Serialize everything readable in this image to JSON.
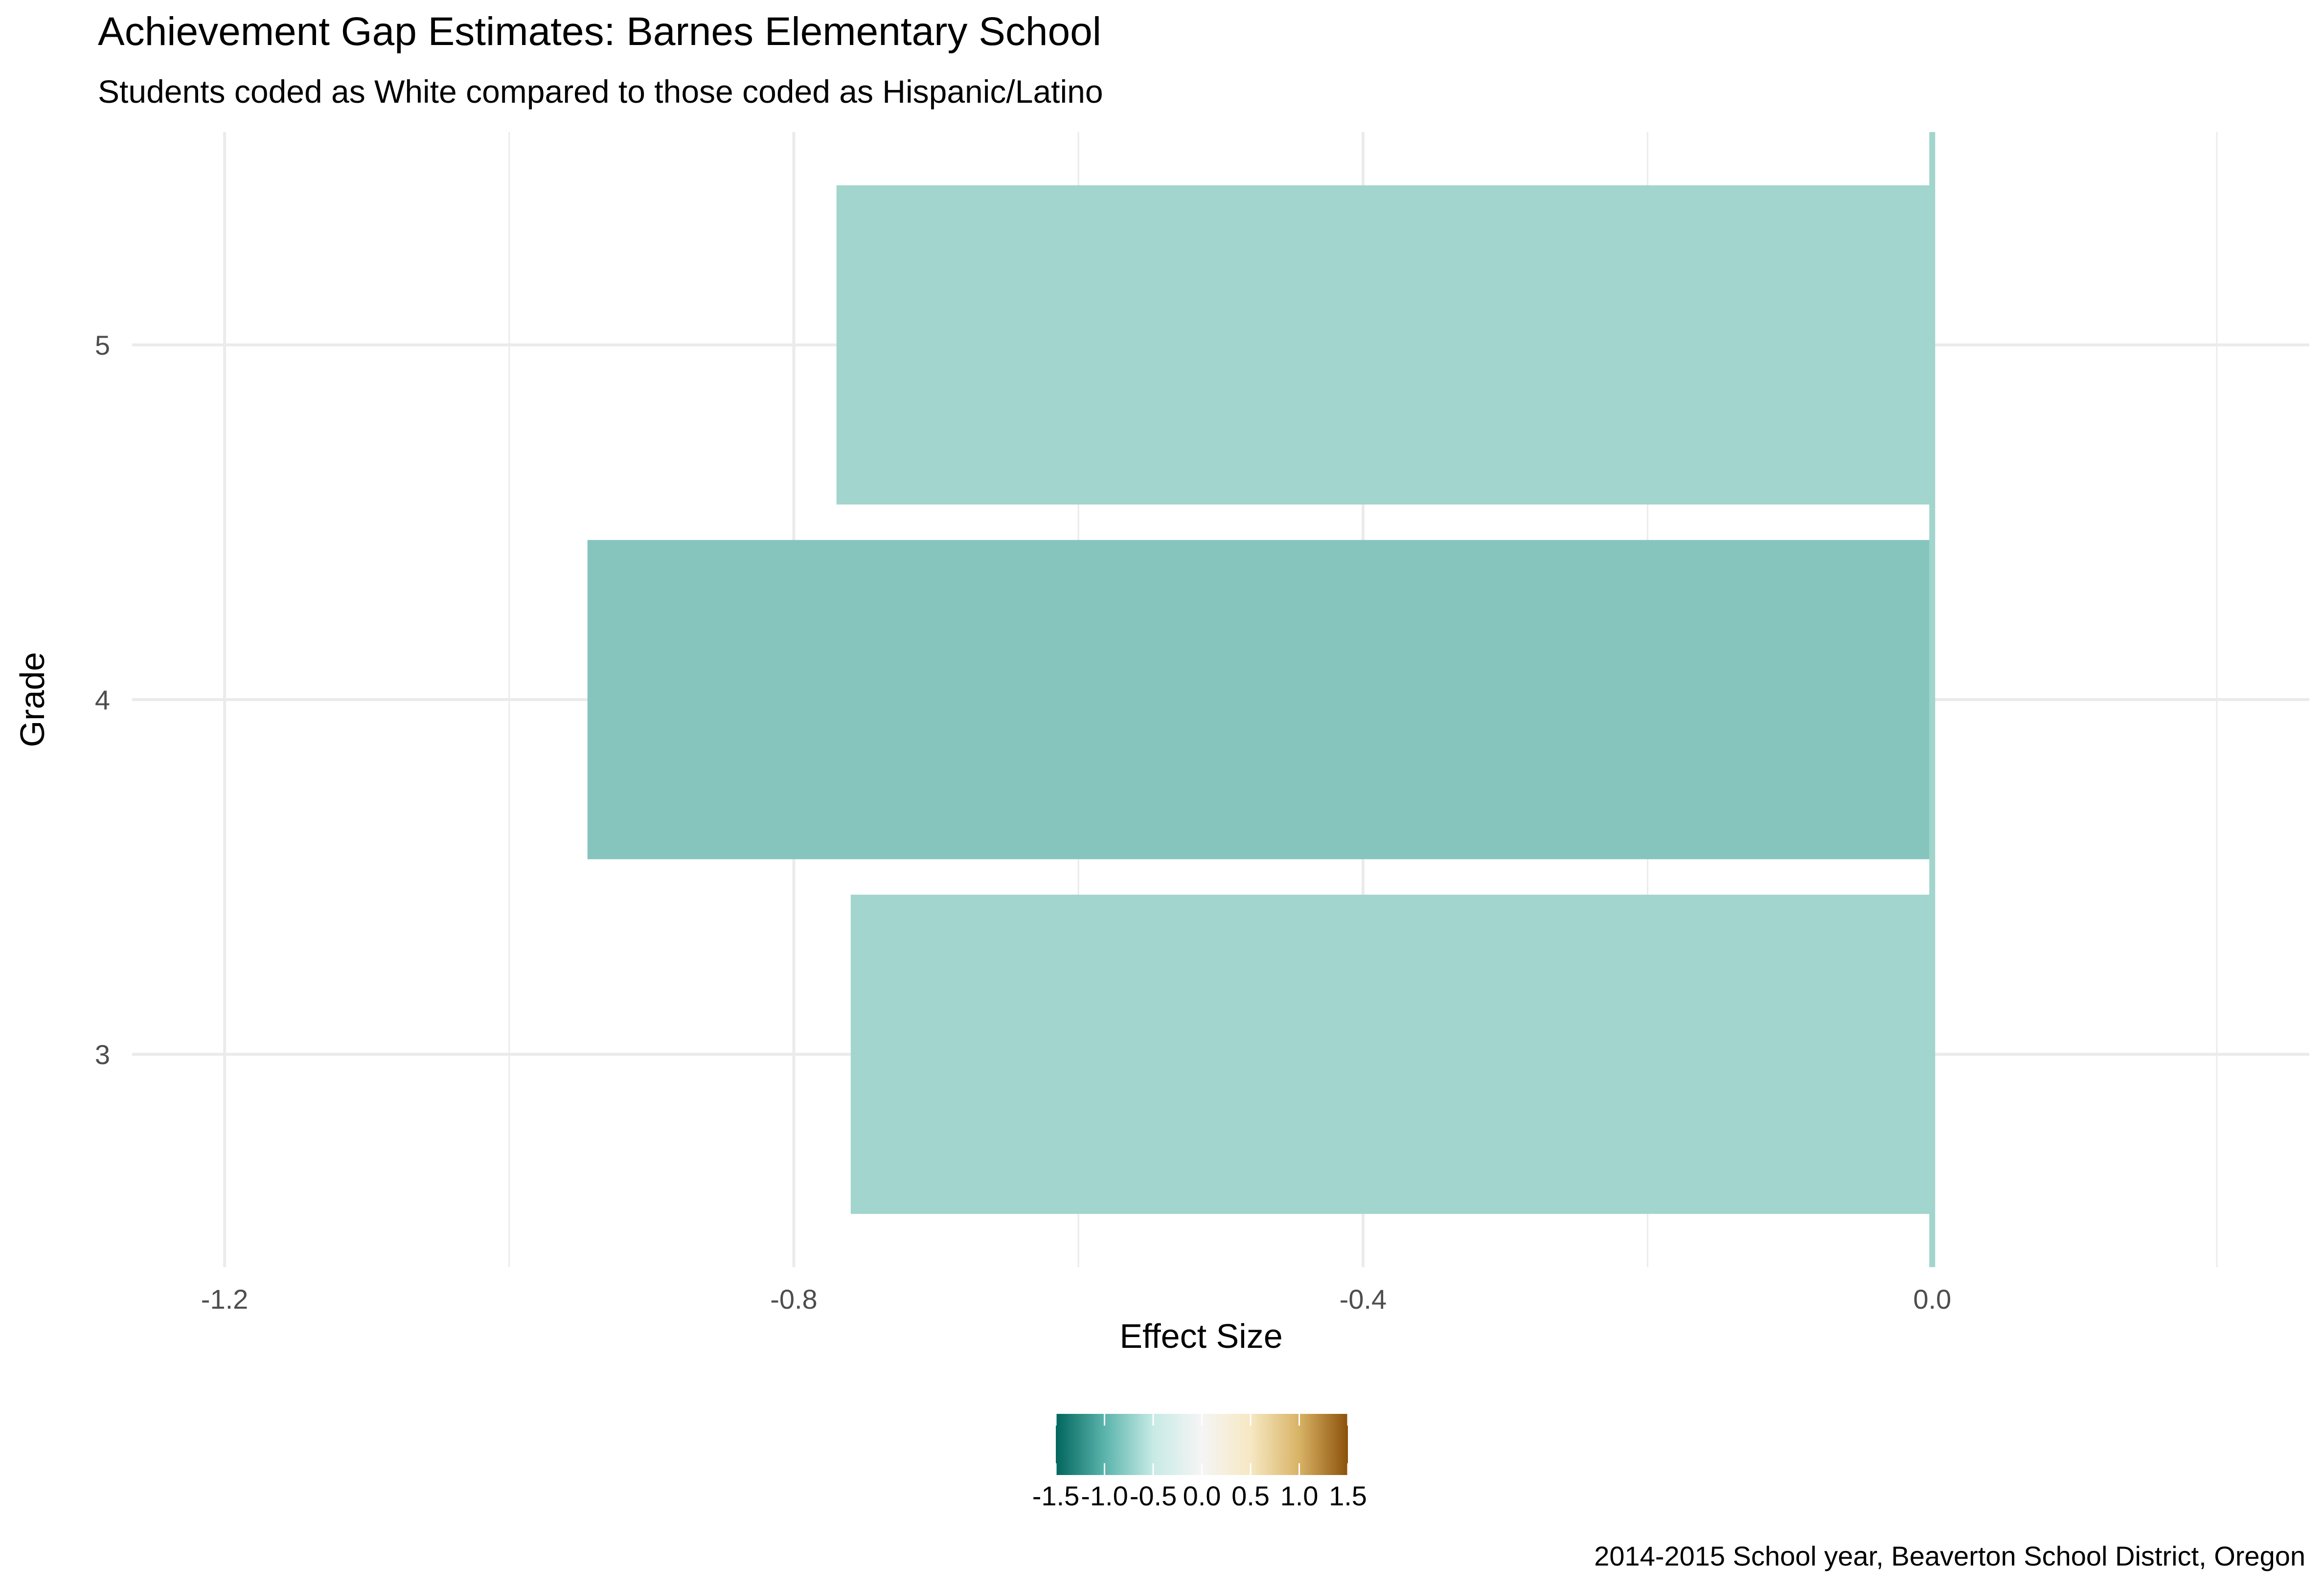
{
  "chart_data": {
    "type": "bar",
    "orientation": "horizontal",
    "title": "Achievement Gap Estimates: Barnes Elementary School",
    "subtitle": "Students coded as White compared to those coded as Hispanic/Latino",
    "xlabel": "Effect Size",
    "ylabel": "Grade",
    "caption": "2014-2015 School year, Beaverton School District, Oregon",
    "categories": [
      "3",
      "4",
      "5"
    ],
    "values": [
      -0.76,
      -0.945,
      -0.77
    ],
    "colors": [
      "#a1d5cd",
      "#86c5be",
      "#a1d5cd"
    ],
    "xlim": [
      -1.265,
      0.265
    ],
    "xticks": [
      -1.2,
      -0.8,
      -0.4,
      0.0
    ],
    "xtick_labels": [
      "-1.2",
      "-0.8",
      "-0.4",
      "0.0"
    ],
    "grid": true,
    "legend": {
      "position": "bottom",
      "type": "colorbar",
      "range": [
        -1.5,
        1.5
      ],
      "tick_labels": [
        "-1.5",
        "-1.0",
        "-0.5",
        "0.0",
        "0.5",
        "1.0",
        "1.5"
      ],
      "palette": [
        "#01665e",
        "#5ab4ac",
        "#c7eae5",
        "#f5f5f5",
        "#f6e8c3",
        "#d8b365",
        "#8c510a"
      ]
    }
  }
}
